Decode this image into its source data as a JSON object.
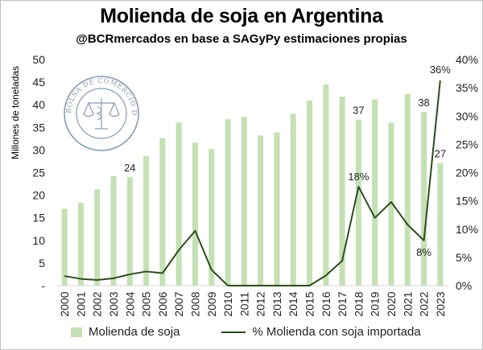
{
  "chart_data": {
    "type": "bar+line",
    "title": "Molienda de soja en Argentina",
    "subtitle": "@BCRmercados en base a SAGyPy estimaciones propias",
    "ylabel_left": "Millones de toneladas",
    "ylim_left": [
      0,
      50
    ],
    "ylim_right": [
      0,
      40
    ],
    "y_ticks_left": [
      "-",
      "5",
      "10",
      "15",
      "20",
      "25",
      "30",
      "35",
      "40",
      "45",
      "50"
    ],
    "y_ticks_right": [
      "0%",
      "5%",
      "10%",
      "15%",
      "20%",
      "25%",
      "30%",
      "35%",
      "40%"
    ],
    "categories": [
      "2000",
      "2001",
      "2002",
      "2003",
      "2004",
      "2005",
      "2006",
      "2007",
      "2008",
      "2009",
      "2010",
      "2011",
      "2012",
      "2013",
      "2014",
      "2015",
      "2016",
      "2017",
      "2018",
      "2019",
      "2020",
      "2021",
      "2022",
      "2023"
    ],
    "series": [
      {
        "name": "Molienda de soja",
        "kind": "bar",
        "axis": "left",
        "color": "#c5e0b4",
        "values": [
          17.0,
          18.3,
          21.3,
          24.2,
          24.0,
          28.7,
          32.6,
          36.1,
          31.6,
          30.2,
          36.8,
          37.3,
          33.2,
          33.9,
          38.0,
          40.9,
          44.5,
          41.8,
          36.7,
          41.2,
          36.0,
          42.4,
          38.4,
          27.1
        ]
      },
      {
        "name": "% Molienda con soja importada",
        "kind": "line",
        "axis": "right",
        "color": "#2e4b1f",
        "values": [
          1.7,
          1.2,
          1.0,
          1.3,
          2.0,
          2.5,
          2.2,
          6.3,
          9.7,
          2.8,
          0,
          0,
          0,
          0,
          0,
          0,
          1.8,
          4.4,
          17.5,
          12.0,
          14.8,
          10.8,
          8.0,
          36.3
        ]
      }
    ],
    "data_labels": [
      {
        "series": 0,
        "index": 4,
        "text": "24"
      },
      {
        "series": 0,
        "index": 18,
        "text": "37"
      },
      {
        "series": 0,
        "index": 22,
        "text": "38"
      },
      {
        "series": 0,
        "index": 23,
        "text": "27"
      },
      {
        "series": 1,
        "index": 18,
        "text": "18%"
      },
      {
        "series": 1,
        "index": 22,
        "text": "8%"
      },
      {
        "series": 1,
        "index": 23,
        "text": "36%"
      }
    ],
    "legend_position": "bottom",
    "grid": false
  },
  "watermark": {
    "text": "BOLSA DE COMERCIO DE ROSARIO",
    "color": "#8a9bb0"
  }
}
